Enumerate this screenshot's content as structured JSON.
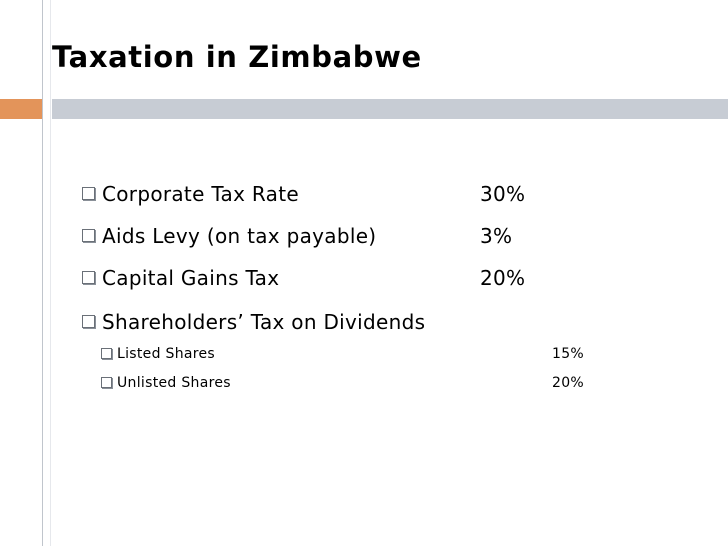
{
  "slide": {
    "title": "Taxation in Zimbabwe",
    "items": [
      {
        "label": "Corporate Tax Rate",
        "value": "30%"
      },
      {
        "label": "Aids Levy (on tax payable)",
        "value": "3%"
      },
      {
        "label": "Capital Gains Tax",
        "value": "20%"
      },
      {
        "label": "Shareholders’ Tax on Dividends",
        "value": ""
      }
    ],
    "sub_items": [
      {
        "label": "Listed Shares",
        "value": "15%"
      },
      {
        "label": "Unlisted Shares",
        "value": "20%"
      }
    ]
  },
  "colors": {
    "accent_orange": "#e3945a",
    "accent_gray": "#c7ccd4"
  },
  "icons": {
    "bullet": "square-bullet-icon"
  }
}
